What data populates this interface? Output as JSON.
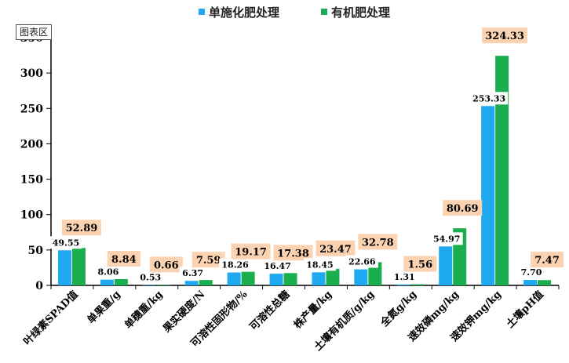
{
  "chart_area_tag": "图表区",
  "colors": {
    "series_1": "#1fa9f1",
    "series_2": "#1aae4e",
    "label_bg_2": "#fbd3b2"
  },
  "chart_data": {
    "type": "bar",
    "title": "",
    "xlabel": "",
    "ylabel": "",
    "ylim": [
      0,
      350
    ],
    "yticks": [
      0,
      50,
      100,
      150,
      200,
      250,
      300,
      350
    ],
    "ytick_labels": [
      "0",
      "50",
      "100",
      "150",
      "200",
      "250",
      "300",
      "350"
    ],
    "grid": false,
    "legend_position": "top",
    "categories": [
      "叶绿素SPAD值",
      "单果重/g",
      "单穗重/kg",
      "果实硬度/N",
      "可溶性固形物/%",
      "可溶性总糖",
      "株产量/kg",
      "土壤有机质/g/kg",
      "全氮g/kg",
      "速效磷mg/kg",
      "速效钾mg/kg",
      "土壤pH值"
    ],
    "series": [
      {
        "name": "单施化肥处理",
        "values": [
          49.55,
          8.06,
          0.53,
          6.37,
          18.26,
          16.47,
          18.45,
          22.66,
          1.31,
          54.97,
          253.33,
          7.7
        ],
        "labels": [
          "49.55",
          "8.06",
          "0.53",
          "6.37",
          "18.26",
          "16.47",
          "18.45",
          "22.66",
          "1.31",
          "54.97",
          "253.33",
          "7.70"
        ]
      },
      {
        "name": "有机肥处理",
        "values": [
          52.89,
          8.84,
          0.66,
          7.59,
          19.17,
          17.38,
          23.47,
          32.78,
          1.56,
          80.69,
          324.33,
          7.47
        ],
        "labels": [
          "52.89",
          "8.84",
          "0.66",
          "7.59",
          "19.17",
          "17.38",
          "23.47",
          "32.78",
          "1.56",
          "80.69",
          "324.33",
          "7.47"
        ]
      }
    ]
  }
}
